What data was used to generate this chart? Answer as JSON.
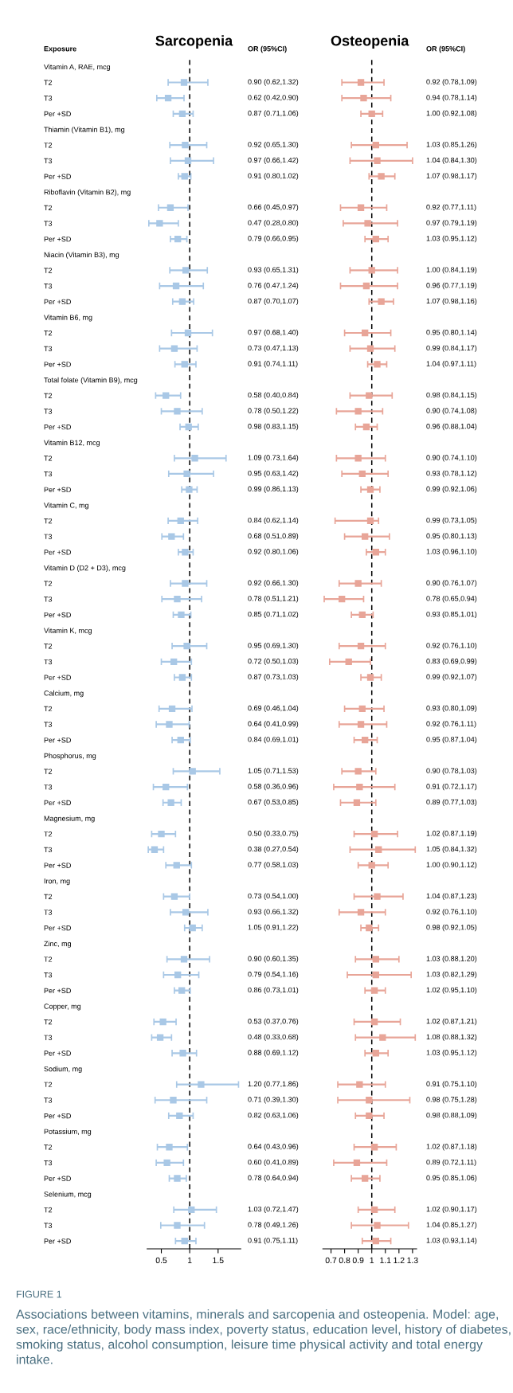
{
  "chart_data": [
    {
      "type": "scatter",
      "orientation": "horizontal",
      "title": "Sarcopenia",
      "ylabel": "Exposure",
      "categories": [
        "Vitamin A, RAE, mcg",
        "T2",
        "T3",
        "Per +SD",
        "Thiamin (Vitamin B1), mg",
        "T2",
        "T3",
        "Per +SD",
        "Riboflavin (Vitamin B2), mg",
        "T2",
        "T3",
        "Per +SD",
        "Niacin (Vitamin B3), mg",
        "T2",
        "T3",
        "Per +SD",
        "Vitamin B6, mg",
        "T2",
        "T3",
        "Per +SD",
        "Total folate (Vitamin B9), mcg",
        "T2",
        "T3",
        "Per +SD",
        "Vitamin B12, mcg",
        "T2",
        "T3",
        "Per +SD",
        "Vitamin C, mg",
        "T2",
        "T3",
        "Per +SD",
        "Vitamin D (D2 + D3), mcg",
        "T2",
        "T3",
        "Per +SD",
        "Vitamin K, mcg",
        "T2",
        "T3",
        "Per +SD",
        "Calcium, mg",
        "T2",
        "T3",
        "Per +SD",
        "Phosphorus, mg",
        "T2",
        "T3",
        "Per +SD",
        "Magnesium, mg",
        "T2",
        "T3",
        "Per +SD",
        "Iron, mg",
        "T2",
        "T3",
        "Per +SD",
        "Zinc, mg",
        "T2",
        "T3",
        "Per +SD",
        "Copper, mg",
        "T2",
        "T3",
        "Per +SD",
        "Sodium, mg",
        "T2",
        "T3",
        "Per +SD",
        "Potassium, mg",
        "T2",
        "T3",
        "Per +SD",
        "Selenium, mcg",
        "T2",
        "T3",
        "Per +SD"
      ],
      "color": "#a9c8e6",
      "marker": "square",
      "values": [
        null,
        0.9,
        0.62,
        0.87,
        null,
        0.92,
        0.97,
        0.91,
        null,
        0.66,
        0.47,
        0.79,
        null,
        0.93,
        0.76,
        0.87,
        null,
        0.97,
        0.73,
        0.91,
        null,
        0.58,
        0.78,
        0.98,
        null,
        1.09,
        0.95,
        0.99,
        null,
        0.84,
        0.68,
        0.92,
        null,
        0.92,
        0.78,
        0.85,
        null,
        0.95,
        0.72,
        0.87,
        null,
        0.69,
        0.64,
        0.84,
        null,
        1.05,
        0.58,
        0.67,
        null,
        0.5,
        0.38,
        0.77,
        null,
        0.73,
        0.93,
        1.05,
        null,
        0.9,
        0.79,
        0.86,
        null,
        0.53,
        0.48,
        0.88,
        null,
        1.2,
        0.71,
        0.82,
        null,
        0.64,
        0.6,
        0.78,
        null,
        1.03,
        0.78,
        0.91
      ],
      "errors": [
        null,
        [
          0.62,
          1.32
        ],
        [
          0.42,
          0.9
        ],
        [
          0.71,
          1.06
        ],
        null,
        [
          0.65,
          1.3
        ],
        [
          0.66,
          1.42
        ],
        [
          0.8,
          1.02
        ],
        null,
        [
          0.45,
          0.97
        ],
        [
          0.28,
          0.8
        ],
        [
          0.66,
          0.95
        ],
        null,
        [
          0.65,
          1.31
        ],
        [
          0.47,
          1.24
        ],
        [
          0.7,
          1.07
        ],
        null,
        [
          0.68,
          1.4
        ],
        [
          0.47,
          1.13
        ],
        [
          0.74,
          1.11
        ],
        null,
        [
          0.4,
          0.84
        ],
        [
          0.5,
          1.22
        ],
        [
          0.83,
          1.15
        ],
        null,
        [
          0.73,
          1.64
        ],
        [
          0.63,
          1.42
        ],
        [
          0.86,
          1.13
        ],
        null,
        [
          0.62,
          1.14
        ],
        [
          0.51,
          0.89
        ],
        [
          0.8,
          1.06
        ],
        null,
        [
          0.66,
          1.3
        ],
        [
          0.51,
          1.21
        ],
        [
          0.71,
          1.02
        ],
        null,
        [
          0.69,
          1.3
        ],
        [
          0.5,
          1.03
        ],
        [
          0.73,
          1.03
        ],
        null,
        [
          0.46,
          1.04
        ],
        [
          0.41,
          0.99
        ],
        [
          0.69,
          1.01
        ],
        null,
        [
          0.71,
          1.53
        ],
        [
          0.36,
          0.96
        ],
        [
          0.53,
          0.85
        ],
        null,
        [
          0.33,
          0.75
        ],
        [
          0.27,
          0.54
        ],
        [
          0.58,
          1.03
        ],
        null,
        [
          0.54,
          1.0
        ],
        [
          0.66,
          1.32
        ],
        [
          0.91,
          1.22
        ],
        null,
        [
          0.6,
          1.35
        ],
        [
          0.54,
          1.16
        ],
        [
          0.73,
          1.01
        ],
        null,
        [
          0.37,
          0.76
        ],
        [
          0.33,
          0.68
        ],
        [
          0.69,
          1.12
        ],
        null,
        [
          0.77,
          1.86
        ],
        [
          0.39,
          1.3
        ],
        [
          0.63,
          1.06
        ],
        null,
        [
          0.43,
          0.96
        ],
        [
          0.41,
          0.89
        ],
        [
          0.64,
          0.94
        ],
        null,
        [
          0.72,
          1.47
        ],
        [
          0.49,
          1.26
        ],
        [
          0.75,
          1.11
        ]
      ],
      "value_labels": [
        null,
        "0.90 (0.62,1.32)",
        "0.62 (0.42,0.90)",
        "0.87 (0.71,1.06)",
        null,
        "0.92 (0.65,1.30)",
        "0.97 (0.66,1.42)",
        "0.91 (0.80,1.02)",
        null,
        "0.66 (0.45,0.97)",
        "0.47 (0.28,0.80)",
        "0.79 (0.66,0.95)",
        null,
        "0.93 (0.65,1.31)",
        "0.76 (0.47,1.24)",
        "0.87 (0.70,1.07)",
        null,
        "0.97 (0.68,1.40)",
        "0.73 (0.47,1.13)",
        "0.91 (0.74,1.11)",
        null,
        "0.58 (0.40,0.84)",
        "0.78 (0.50,1.22)",
        "0.98 (0.83,1.15)",
        null,
        "1.09 (0.73,1.64)",
        "0.95 (0.63,1.42)",
        "0.99 (0.86,1.13)",
        null,
        "0.84 (0.62,1.14)",
        "0.68 (0.51,0.89)",
        "0.92 (0.80,1.06)",
        null,
        "0.92 (0.66,1.30)",
        "0.78 (0.51,1.21)",
        "0.85 (0.71,1.02)",
        null,
        "0.95 (0.69,1.30)",
        "0.72 (0.50,1.03)",
        "0.87 (0.73,1.03)",
        null,
        "0.69 (0.46,1.04)",
        "0.64 (0.41,0.99)",
        "0.84 (0.69,1.01)",
        null,
        "1.05 (0.71,1.53)",
        "0.58 (0.36,0.96)",
        "0.67 (0.53,0.85)",
        null,
        "0.50 (0.33,0.75)",
        "0.38 (0.27,0.54)",
        "0.77 (0.58,1.03)",
        null,
        "0.73 (0.54,1.00)",
        "0.93 (0.66,1.32)",
        "1.05 (0.91,1.22)",
        null,
        "0.90 (0.60,1.35)",
        "0.79 (0.54,1.16)",
        "0.86 (0.73,1.01)",
        null,
        "0.53 (0.37,0.76)",
        "0.48 (0.33,0.68)",
        "0.88 (0.69,1.12)",
        null,
        "1.20 (0.77,1.86)",
        "0.71 (0.39,1.30)",
        "0.82 (0.63,1.06)",
        null,
        "0.64 (0.43,0.96)",
        "0.60 (0.41,0.89)",
        "0.78 (0.64,0.94)",
        null,
        "1.03 (0.72,1.47)",
        "0.78 (0.49,1.26)",
        "0.91 (0.75,1.11)"
      ],
      "xlim": [
        0.25,
        1.9
      ],
      "xticks": [
        0.5,
        1,
        1.5
      ],
      "ref_lines": [
        {
          "axis": "x",
          "value": 1,
          "line_style": "dashed",
          "color": "#000000"
        }
      ],
      "annotations": [
        "OR (95%CI)",
        "FIGURE 1",
        "Associations between vitamins, minerals and sarcopenia and osteopenia. Model: age, sex, race/ethnicity, body mass index, poverty status, education level, history of diabetes, smoking status, alcohol consumption, leisure time physical activity and total energy intake."
      ]
    },
    {
      "type": "scatter",
      "orientation": "horizontal",
      "title": "Osteopenia",
      "categories": [
        null,
        null,
        null,
        null,
        null,
        null,
        null,
        null,
        null,
        null,
        null,
        null,
        null,
        null,
        null,
        null,
        null,
        null,
        null,
        null,
        null,
        null,
        null,
        null,
        null,
        null,
        null,
        null,
        null,
        null,
        null,
        null,
        null,
        null,
        null,
        null,
        null,
        null,
        null,
        null,
        null,
        null,
        null,
        null,
        null,
        null,
        null,
        null,
        null,
        null,
        null,
        null,
        null,
        null,
        null,
        null,
        null,
        null,
        null,
        null,
        null,
        null,
        null,
        null,
        null,
        null,
        null,
        null,
        null,
        null,
        null,
        null,
        null,
        null,
        null,
        null
      ],
      "color": "#e8a598",
      "marker": "square",
      "values": [
        null,
        0.92,
        0.94,
        1.0,
        null,
        1.03,
        1.04,
        1.07,
        null,
        0.92,
        0.97,
        1.03,
        null,
        1.0,
        0.96,
        1.07,
        null,
        0.95,
        0.99,
        1.04,
        null,
        0.98,
        0.9,
        0.96,
        null,
        0.9,
        0.93,
        0.99,
        null,
        0.99,
        0.95,
        1.03,
        null,
        0.9,
        0.78,
        0.93,
        null,
        0.92,
        0.83,
        0.99,
        null,
        0.93,
        0.92,
        0.95,
        null,
        0.9,
        0.91,
        0.89,
        null,
        1.02,
        1.05,
        1.0,
        null,
        1.04,
        0.92,
        0.98,
        null,
        1.03,
        1.03,
        1.02,
        null,
        1.02,
        1.08,
        1.03,
        null,
        0.91,
        0.98,
        0.98,
        null,
        1.02,
        0.89,
        0.95,
        null,
        1.02,
        1.04,
        1.03
      ],
      "errors": [
        null,
        [
          0.78,
          1.09
        ],
        [
          0.78,
          1.14
        ],
        [
          0.92,
          1.08
        ],
        null,
        [
          0.85,
          1.26
        ],
        [
          0.84,
          1.3
        ],
        [
          0.98,
          1.17
        ],
        null,
        [
          0.77,
          1.11
        ],
        [
          0.79,
          1.19
        ],
        [
          0.95,
          1.12
        ],
        null,
        [
          0.84,
          1.19
        ],
        [
          0.77,
          1.19
        ],
        [
          0.98,
          1.16
        ],
        null,
        [
          0.8,
          1.14
        ],
        [
          0.84,
          1.17
        ],
        [
          0.97,
          1.11
        ],
        null,
        [
          0.84,
          1.15
        ],
        [
          0.74,
          1.08
        ],
        [
          0.88,
          1.04
        ],
        null,
        [
          0.74,
          1.1
        ],
        [
          0.78,
          1.12
        ],
        [
          0.92,
          1.06
        ],
        null,
        [
          0.73,
          1.05
        ],
        [
          0.8,
          1.13
        ],
        [
          0.96,
          1.1
        ],
        null,
        [
          0.76,
          1.07
        ],
        [
          0.65,
          0.94
        ],
        [
          0.85,
          1.01
        ],
        null,
        [
          0.76,
          1.1
        ],
        [
          0.69,
          0.99
        ],
        [
          0.92,
          1.07
        ],
        null,
        [
          0.8,
          1.09
        ],
        [
          0.76,
          1.11
        ],
        [
          0.87,
          1.04
        ],
        null,
        [
          0.78,
          1.03
        ],
        [
          0.72,
          1.17
        ],
        [
          0.77,
          1.03
        ],
        null,
        [
          0.87,
          1.19
        ],
        [
          0.84,
          1.32
        ],
        [
          0.9,
          1.12
        ],
        null,
        [
          0.87,
          1.23
        ],
        [
          0.76,
          1.1
        ],
        [
          0.92,
          1.05
        ],
        null,
        [
          0.88,
          1.2
        ],
        [
          0.82,
          1.29
        ],
        [
          0.95,
          1.1
        ],
        null,
        [
          0.87,
          1.21
        ],
        [
          0.88,
          1.32
        ],
        [
          0.95,
          1.12
        ],
        null,
        [
          0.75,
          1.1
        ],
        [
          0.75,
          1.28
        ],
        [
          0.88,
          1.09
        ],
        null,
        [
          0.87,
          1.18
        ],
        [
          0.72,
          1.11
        ],
        [
          0.85,
          1.06
        ],
        null,
        [
          0.9,
          1.17
        ],
        [
          0.85,
          1.27
        ],
        [
          0.93,
          1.14
        ]
      ],
      "value_labels": [
        null,
        "0.92 (0.78,1.09)",
        "0.94 (0.78,1.14)",
        "1.00 (0.92,1.08)",
        null,
        "1.03 (0.85,1.26)",
        "1.04 (0.84,1.30)",
        "1.07 (0.98,1.17)",
        null,
        "0.92 (0.77,1.11)",
        "0.97 (0.79,1.19)",
        "1.03 (0.95,1.12)",
        null,
        "1.00 (0.84,1.19)",
        "0.96 (0.77,1.19)",
        "1.07 (0.98,1.16)",
        null,
        "0.95 (0.80,1.14)",
        "0.99 (0.84,1.17)",
        "1.04 (0.97,1.11)",
        null,
        "0.98 (0.84,1.15)",
        "0.90 (0.74,1.08)",
        "0.96 (0.88,1.04)",
        null,
        "0.90 (0.74,1.10)",
        "0.93 (0.78,1.12)",
        "0.99 (0.92,1.06)",
        null,
        "0.99 (0.73,1.05)",
        "0.95 (0.80,1.13)",
        "1.03 (0.96,1.10)",
        null,
        "0.90 (0.76,1.07)",
        "0.78 (0.65,0.94)",
        "0.93 (0.85,1.01)",
        null,
        "0.92 (0.76,1.10)",
        "0.83 (0.69,0.99)",
        "0.99 (0.92,1.07)",
        null,
        "0.93 (0.80,1.09)",
        "0.92 (0.76,1.11)",
        "0.95 (0.87,1.04)",
        null,
        "0.90 (0.78,1.03)",
        "0.91 (0.72,1.17)",
        "0.89 (0.77,1.03)",
        null,
        "1.02 (0.87,1.19)",
        "1.05 (0.84,1.32)",
        "1.00 (0.90,1.12)",
        null,
        "1.04 (0.87,1.23)",
        "0.92 (0.76,1.10)",
        "0.98 (0.92,1.05)",
        null,
        "1.03 (0.88,1.20)",
        "1.03 (0.82,1.29)",
        "1.02 (0.95,1.10)",
        null,
        "1.02 (0.87,1.21)",
        "1.08 (0.88,1.32)",
        "1.03 (0.95,1.12)",
        null,
        "0.91 (0.75,1.10)",
        "0.98 (0.75,1.28)",
        "0.98 (0.88,1.09)",
        null,
        "1.02 (0.87,1.18)",
        "0.89 (0.72,1.11)",
        "0.95 (0.85,1.06)",
        null,
        "1.02 (0.90,1.17)",
        "1.04 (0.85,1.27)",
        "1.03 (0.93,1.14)"
      ],
      "xlim": [
        0.64,
        1.33
      ],
      "xticks": [
        0.7,
        0.8,
        0.9,
        1,
        1.1,
        1.2,
        1.3
      ],
      "ref_lines": [
        {
          "axis": "x",
          "value": 1,
          "line_style": "dashed",
          "color": "#000000"
        }
      ],
      "annotations": [
        "OR (95%CI)"
      ]
    }
  ]
}
